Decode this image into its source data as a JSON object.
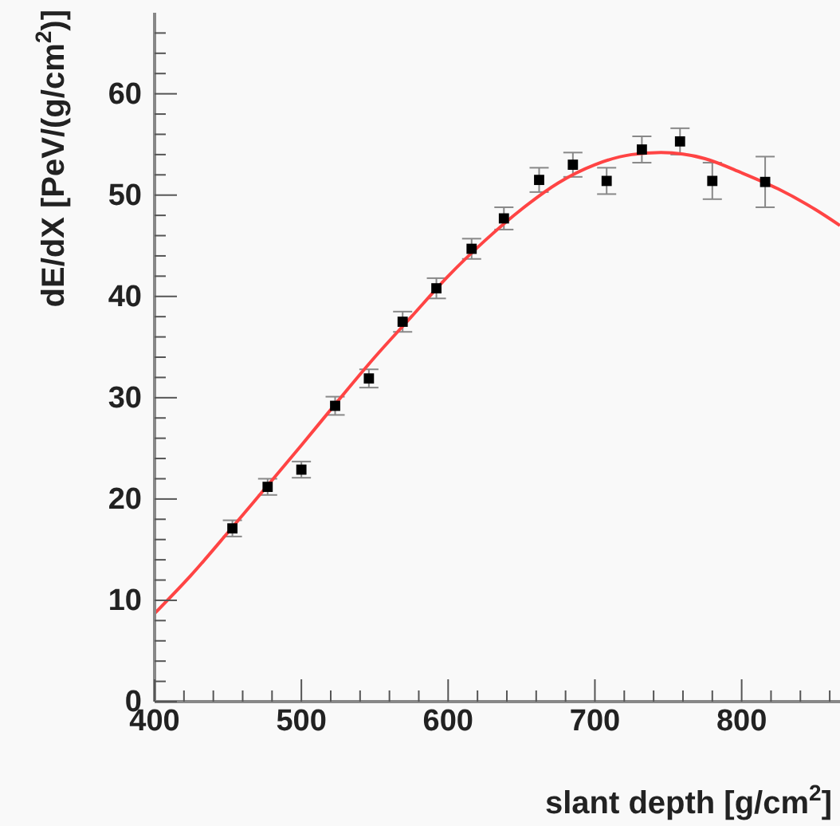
{
  "chart_data": {
    "type": "scatter",
    "xlabel": "slant depth [g/cm$^{2}$]",
    "ylabel": "dE/dX [PeV/(g/cm$^{2}$)]",
    "xlim": [
      400,
      867
    ],
    "ylim": [
      0,
      68
    ],
    "xticks": [
      400,
      {
        "value": 420,
        "label": null
      },
      {
        "value": 440,
        "label": null
      },
      {
        "value": 460,
        "label": null
      },
      {
        "value": 480,
        "label": null
      },
      500,
      {
        "value": 520,
        "label": null
      },
      {
        "value": 540,
        "label": null
      },
      {
        "value": 560,
        "label": null
      },
      {
        "value": 580,
        "label": null
      },
      600,
      {
        "value": 620,
        "label": null
      },
      {
        "value": 640,
        "label": null
      },
      {
        "value": 660,
        "label": null
      },
      {
        "value": 680,
        "label": null
      },
      700,
      {
        "value": 720,
        "label": null
      },
      {
        "value": 740,
        "label": null
      },
      {
        "value": 760,
        "label": null
      },
      {
        "value": 780,
        "label": null
      },
      800,
      {
        "value": 820,
        "label": null
      },
      {
        "value": 840,
        "label": null
      },
      {
        "value": 860,
        "label": null
      }
    ],
    "yticks": [
      0,
      {
        "value": 2,
        "label": null
      },
      {
        "value": 4,
        "label": null
      },
      {
        "value": 6,
        "label": null
      },
      {
        "value": 8,
        "label": null
      },
      10,
      {
        "value": 12,
        "label": null
      },
      {
        "value": 14,
        "label": null
      },
      {
        "value": 16,
        "label": null
      },
      {
        "value": 18,
        "label": null
      },
      20,
      {
        "value": 22,
        "label": null
      },
      {
        "value": 24,
        "label": null
      },
      {
        "value": 26,
        "label": null
      },
      {
        "value": 28,
        "label": null
      },
      30,
      {
        "value": 32,
        "label": null
      },
      {
        "value": 34,
        "label": null
      },
      {
        "value": 36,
        "label": null
      },
      {
        "value": 38,
        "label": null
      },
      40,
      {
        "value": 42,
        "label": null
      },
      {
        "value": 44,
        "label": null
      },
      {
        "value": 46,
        "label": null
      },
      {
        "value": 48,
        "label": null
      },
      50,
      {
        "value": 52,
        "label": null
      },
      {
        "value": 54,
        "label": null
      },
      {
        "value": 56,
        "label": null
      },
      {
        "value": 58,
        "label": null
      },
      60,
      {
        "value": 62,
        "label": null
      },
      {
        "value": 64,
        "label": null
      },
      {
        "value": 66,
        "label": null
      }
    ],
    "grid": false,
    "marker": "square",
    "series": [
      {
        "color": "#000000",
        "x": [
          453,
          477,
          500,
          523,
          546,
          569,
          592,
          616,
          638,
          662,
          685,
          708,
          732,
          758,
          780,
          816
        ],
        "values": [
          17.1,
          21.2,
          22.9,
          29.2,
          31.9,
          37.5,
          40.8,
          44.7,
          47.7,
          51.5,
          53.0,
          51.4,
          54.5,
          55.3,
          51.4,
          51.3
        ],
        "errors": [
          0.8,
          0.8,
          0.8,
          0.9,
          0.9,
          1.0,
          1.0,
          1.0,
          1.1,
          1.2,
          1.2,
          1.3,
          1.3,
          1.3,
          1.8,
          2.5
        ]
      },
      {
        "color": "#ff4444",
        "type": "line",
        "marker": "none",
        "x": [
          400,
          425,
          450,
          475,
          500,
          525,
          550,
          575,
          600,
          625,
          650,
          675,
          700,
          725,
          745,
          775,
          800,
          825,
          850,
          867
        ],
        "values": [
          8.7,
          12.5,
          16.7,
          21.0,
          25.3,
          29.7,
          34.0,
          38.0,
          42.0,
          45.5,
          48.6,
          51.2,
          53.0,
          54.0,
          54.2,
          53.6,
          52.2,
          50.6,
          48.6,
          47.0
        ]
      }
    ]
  }
}
